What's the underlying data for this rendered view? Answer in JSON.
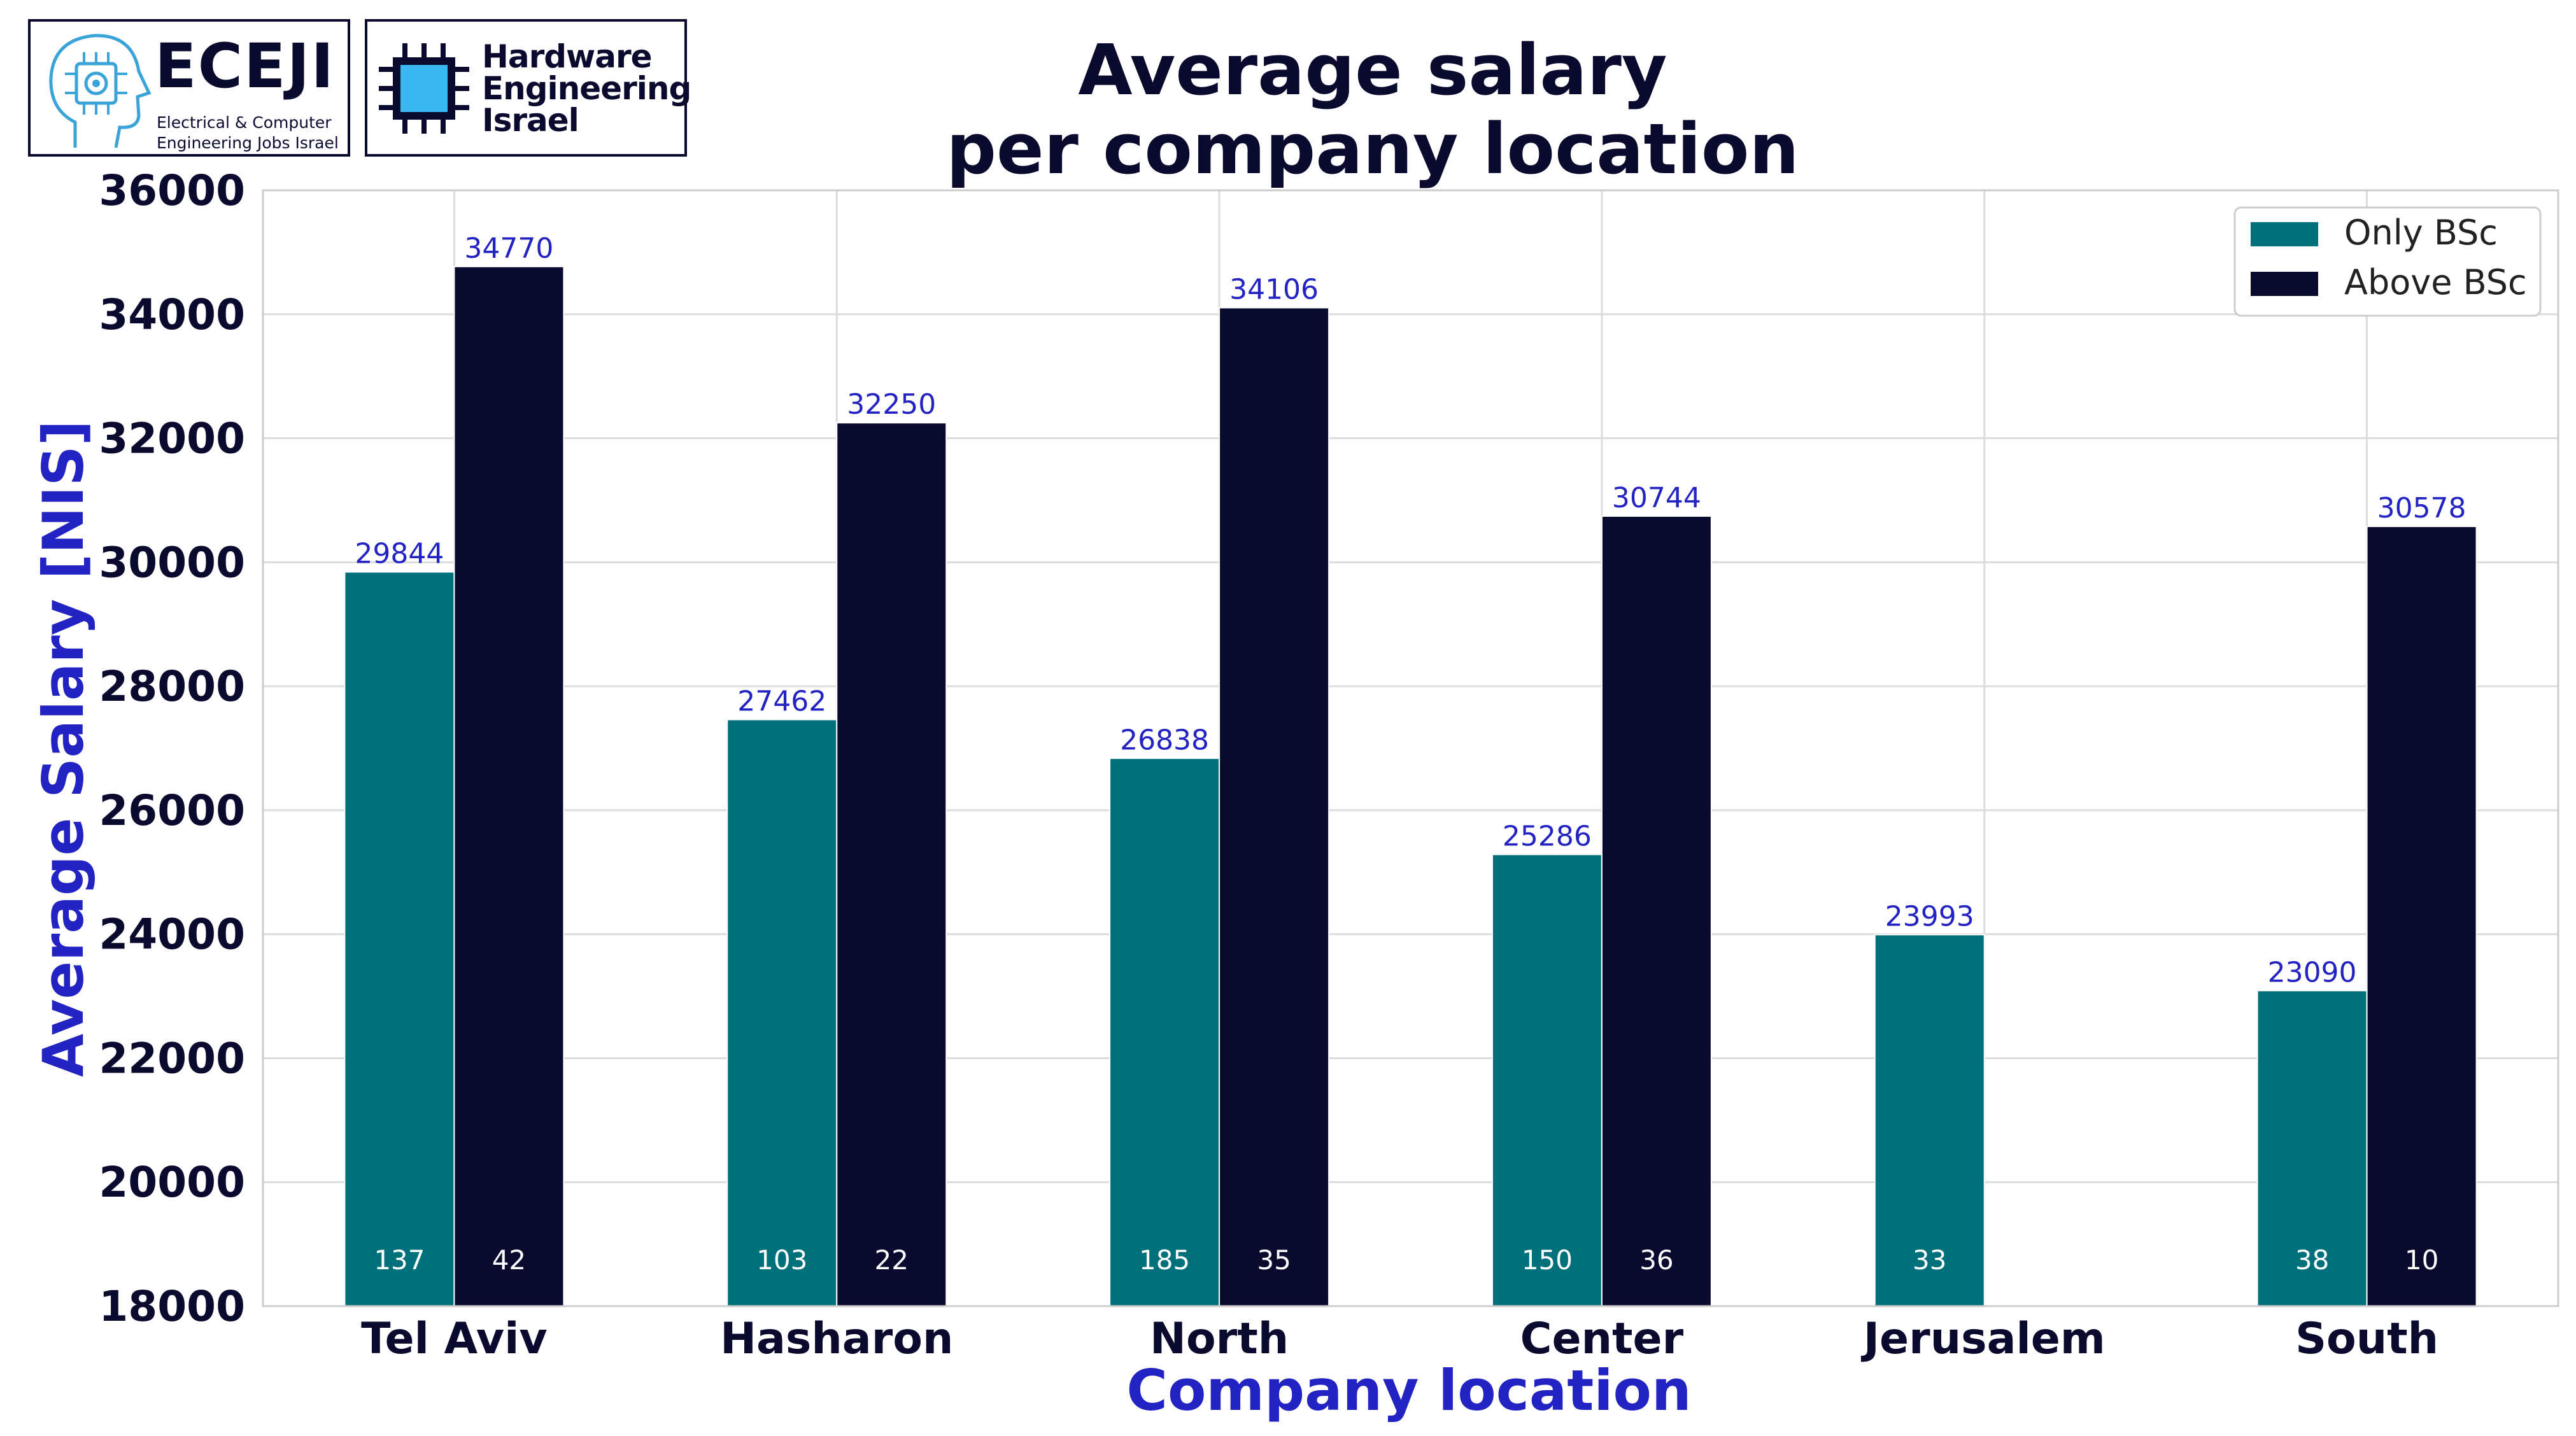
{
  "logos": {
    "eceji": {
      "name": "ECEJI",
      "subtitle_line1": "Electrical & Computer",
      "subtitle_line2": "Engineering Jobs Israel"
    },
    "hei": {
      "line1": "Hardware",
      "line2": "Engineering",
      "line3": "Israel"
    }
  },
  "chart_data": {
    "type": "bar",
    "title_line1": "Average salary",
    "title_line2": "per company location",
    "xlabel": "Company location",
    "ylabel": "Average Salary [NIS]",
    "ylim": [
      18000,
      36000
    ],
    "yticks": [
      "18000",
      "20000",
      "22000",
      "24000",
      "26000",
      "28000",
      "30000",
      "32000",
      "34000",
      "36000"
    ],
    "grid": true,
    "legend_position": "top-right",
    "categories": [
      "Tel Aviv",
      "Hasharon",
      "North",
      "Center",
      "Jerusalem",
      "South"
    ],
    "series": [
      {
        "name": "Only BSc",
        "color": "#00707a",
        "values": [
          29844,
          27462,
          26838,
          25286,
          23993,
          23090
        ],
        "value_labels": [
          "29844",
          "27462",
          "26838",
          "25286",
          "23993",
          "23090"
        ],
        "counts": [
          "137",
          "103",
          "185",
          "150",
          "33",
          "38"
        ]
      },
      {
        "name": "Above BSc",
        "color": "#0a0a2e",
        "values": [
          34770,
          32250,
          34106,
          30744,
          null,
          30578
        ],
        "value_labels": [
          "34770",
          "32250",
          "34106",
          "30744",
          "",
          "30578"
        ],
        "counts": [
          "42",
          "22",
          "35",
          "36",
          "",
          "10"
        ]
      }
    ],
    "colors": {
      "title": "#0a0a2e",
      "axis_label": "#2323c4",
      "value_label": "#2323c4",
      "tick_label": "#0a0a2e",
      "count_label": "#ffffff",
      "grid": "#dcdcdc"
    }
  }
}
